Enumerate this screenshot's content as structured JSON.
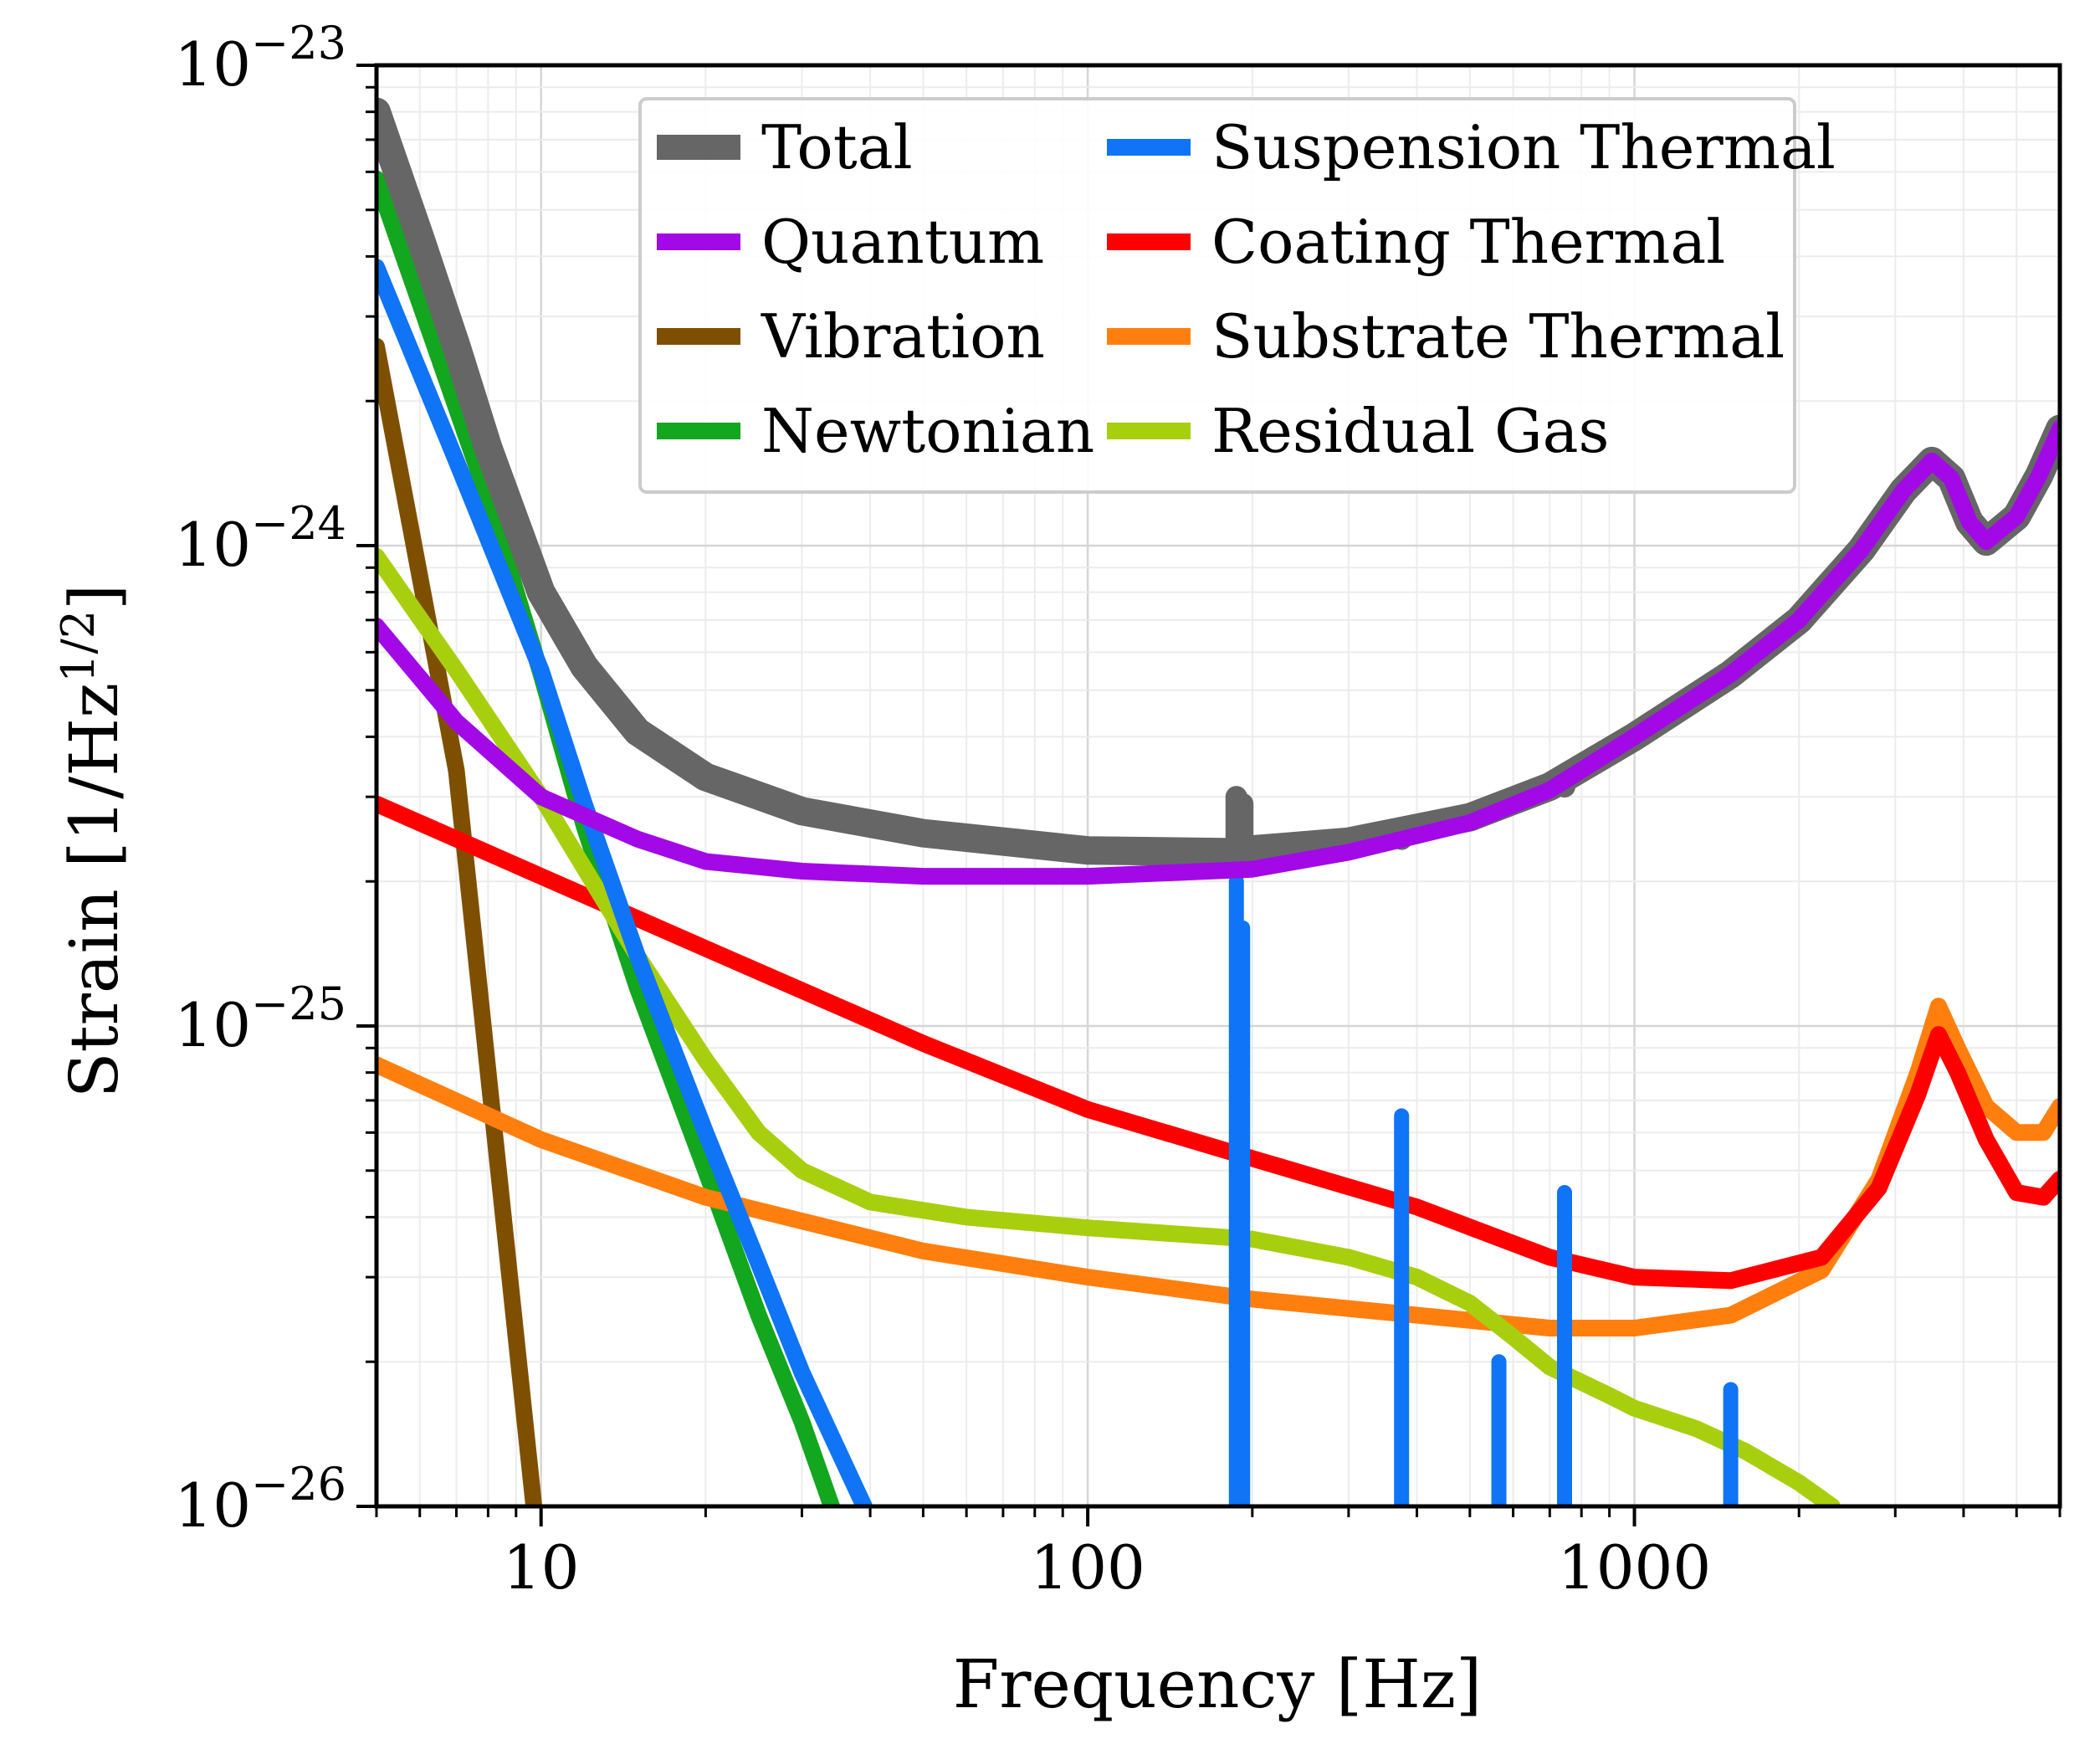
{
  "chart_data": {
    "type": "line",
    "title": "",
    "xlabel": "Frequency [Hz]",
    "ylabel": "Strain [1/Hz^{1/2}]",
    "ylabel_parts": {
      "main": "Strain [1/Hz",
      "sup": "1/2",
      "end": "]"
    },
    "xscale": "log",
    "yscale": "log",
    "xlim": [
      5,
      6000
    ],
    "ylim": [
      1e-26,
      1e-23
    ],
    "grid": true,
    "legend_position": "top-center",
    "x_ticks": [
      {
        "value": 10,
        "label": "10"
      },
      {
        "value": 100,
        "label": "100"
      },
      {
        "value": 1000,
        "label": "1000"
      }
    ],
    "y_ticks": [
      {
        "value": 1e-26,
        "base": "10",
        "exp": "−26"
      },
      {
        "value": 1e-25,
        "base": "10",
        "exp": "−25"
      },
      {
        "value": 1e-24,
        "base": "10",
        "exp": "−24"
      },
      {
        "value": 1e-23,
        "base": "10",
        "exp": "−23"
      }
    ],
    "series": [
      {
        "name": "Vibration",
        "key": "vibration",
        "color": "#7f4f00",
        "points": [
          [
            5,
            2.6e-24
          ],
          [
            7,
            3.4e-25
          ],
          [
            9.7,
            1e-26
          ]
        ]
      },
      {
        "name": "Newtonian",
        "key": "newtonian",
        "color": "#13a61f",
        "points": [
          [
            5,
            5.8e-24
          ],
          [
            8,
            1.25e-24
          ],
          [
            10,
            5.4e-25
          ],
          [
            12,
            2.6e-25
          ],
          [
            15,
            1.2e-25
          ],
          [
            20,
            5e-26
          ],
          [
            25,
            2.5e-26
          ],
          [
            30,
            1.5e-26
          ],
          [
            34,
            1e-26
          ]
        ]
      },
      {
        "name": "Suspension Thermal",
        "key": "suspension",
        "color": "#0f74f6",
        "points": [
          [
            5,
            3.8e-24
          ],
          [
            7,
            1.5e-24
          ],
          [
            10,
            5.5e-25
          ],
          [
            12,
            2.9e-25
          ],
          [
            15,
            1.4e-25
          ],
          [
            20,
            6e-26
          ],
          [
            25,
            3.2e-26
          ],
          [
            30,
            1.9e-26
          ],
          [
            39,
            1e-26
          ]
        ],
        "spikes": [
          {
            "f": 187,
            "peak": 2e-25
          },
          {
            "f": 192,
            "peak": 1.6e-25
          },
          {
            "f": 375,
            "peak": 6.5e-26
          },
          {
            "f": 565,
            "peak": 2e-26
          },
          {
            "f": 745,
            "peak": 4.5e-26
          },
          {
            "f": 1500,
            "peak": 1.75e-26
          }
        ]
      },
      {
        "name": "Substrate Thermal",
        "key": "substrate",
        "color": "#ff7f0e",
        "points": [
          [
            5,
            8.3e-26
          ],
          [
            10,
            5.8e-26
          ],
          [
            20,
            4.4e-26
          ],
          [
            50,
            3.4e-26
          ],
          [
            100,
            3e-26
          ],
          [
            200,
            2.7e-26
          ],
          [
            400,
            2.5e-26
          ],
          [
            700,
            2.35e-26
          ],
          [
            1000,
            2.35e-26
          ],
          [
            1500,
            2.5e-26
          ],
          [
            2200,
            3.1e-26
          ],
          [
            2800,
            4.8e-26
          ],
          [
            3300,
            8e-26
          ],
          [
            3600,
            1.1e-25
          ],
          [
            3900,
            9e-26
          ],
          [
            4400,
            6.8e-26
          ],
          [
            5000,
            6e-26
          ],
          [
            5600,
            6e-26
          ],
          [
            6000,
            6.8e-26
          ]
        ]
      },
      {
        "name": "Coating Thermal",
        "key": "coating",
        "color": "#ff0000",
        "points": [
          [
            5,
            2.9e-25
          ],
          [
            10,
            2.05e-25
          ],
          [
            20,
            1.45e-25
          ],
          [
            50,
            9.2e-26
          ],
          [
            100,
            6.7e-26
          ],
          [
            200,
            5.3e-26
          ],
          [
            400,
            4.2e-26
          ],
          [
            700,
            3.3e-26
          ],
          [
            1000,
            3e-26
          ],
          [
            1500,
            2.95e-26
          ],
          [
            2200,
            3.3e-26
          ],
          [
            2800,
            4.6e-26
          ],
          [
            3300,
            7.2e-26
          ],
          [
            3600,
            9.6e-26
          ],
          [
            3900,
            8e-26
          ],
          [
            4400,
            5.8e-26
          ],
          [
            5000,
            4.5e-26
          ],
          [
            5600,
            4.4e-26
          ],
          [
            6000,
            4.8e-26
          ]
        ]
      },
      {
        "name": "Residual Gas",
        "key": "gas",
        "color": "#a7cf0e",
        "points": [
          [
            5,
            9.5e-25
          ],
          [
            7,
            5.5e-25
          ],
          [
            10,
            3e-25
          ],
          [
            15,
            1.4e-25
          ],
          [
            20,
            8.5e-26
          ],
          [
            25,
            6e-26
          ],
          [
            30,
            5e-26
          ],
          [
            40,
            4.3e-26
          ],
          [
            60,
            4e-26
          ],
          [
            100,
            3.8e-26
          ],
          [
            200,
            3.6e-26
          ],
          [
            300,
            3.3e-26
          ],
          [
            400,
            3e-26
          ],
          [
            500,
            2.65e-26
          ],
          [
            600,
            2.25e-26
          ],
          [
            700,
            1.95e-26
          ],
          [
            900,
            1.7e-26
          ],
          [
            1000,
            1.6e-26
          ],
          [
            1300,
            1.45e-26
          ],
          [
            1600,
            1.3e-26
          ],
          [
            2000,
            1.12e-26
          ],
          [
            2300,
            1e-26
          ]
        ]
      },
      {
        "name": "Quantum",
        "key": "quantum",
        "color": "#a209e6",
        "points": [
          [
            5,
            6.8e-25
          ],
          [
            7,
            4.3e-25
          ],
          [
            10,
            3e-25
          ],
          [
            15,
            2.45e-25
          ],
          [
            20,
            2.2e-25
          ],
          [
            30,
            2.1e-25
          ],
          [
            50,
            2.05e-25
          ],
          [
            100,
            2.05e-25
          ],
          [
            200,
            2.12e-25
          ],
          [
            300,
            2.3e-25
          ],
          [
            500,
            2.65e-25
          ],
          [
            700,
            3.1e-25
          ],
          [
            1000,
            4e-25
          ],
          [
            1500,
            5.4e-25
          ],
          [
            2000,
            7e-25
          ],
          [
            2600,
            9.8e-25
          ],
          [
            3100,
            1.3e-24
          ],
          [
            3500,
            1.5e-24
          ],
          [
            3800,
            1.38e-24
          ],
          [
            4100,
            1.12e-24
          ],
          [
            4400,
            1.02e-24
          ],
          [
            5000,
            1.15e-24
          ],
          [
            5500,
            1.4e-24
          ],
          [
            6000,
            1.75e-24
          ]
        ]
      },
      {
        "name": "Total",
        "key": "total",
        "color": "#666666",
        "points": [
          [
            5,
            8e-24
          ],
          [
            6,
            4.4e-24
          ],
          [
            7,
            2.6e-24
          ],
          [
            8,
            1.6e-24
          ],
          [
            10,
            8e-25
          ],
          [
            12,
            5.6e-25
          ],
          [
            15,
            4.1e-25
          ],
          [
            20,
            3.3e-25
          ],
          [
            30,
            2.8e-25
          ],
          [
            50,
            2.52e-25
          ],
          [
            100,
            2.32e-25
          ],
          [
            185,
            2.3e-25
          ],
          [
            200,
            2.33e-25
          ],
          [
            300,
            2.42e-25
          ],
          [
            500,
            2.72e-25
          ],
          [
            700,
            3.15e-25
          ],
          [
            1000,
            4e-25
          ],
          [
            1500,
            5.4e-25
          ],
          [
            2000,
            7e-25
          ],
          [
            2600,
            9.8e-25
          ],
          [
            3100,
            1.3e-24
          ],
          [
            3500,
            1.5e-24
          ],
          [
            3800,
            1.38e-24
          ],
          [
            4100,
            1.12e-24
          ],
          [
            4400,
            1.02e-24
          ],
          [
            5000,
            1.15e-24
          ],
          [
            5500,
            1.4e-24
          ],
          [
            6000,
            1.75e-24
          ]
        ],
        "spikes": [
          {
            "f": 187,
            "base": 2.3e-25,
            "peak": 3e-25
          },
          {
            "f": 192,
            "base": 2.3e-25,
            "peak": 2.9e-25
          },
          {
            "f": 375,
            "base": 2.45e-25,
            "peak": 2.55e-25
          },
          {
            "f": 745,
            "base": 3.15e-25,
            "peak": 3.3e-25
          }
        ]
      }
    ],
    "legend": [
      {
        "key": "total",
        "label": "Total",
        "color": "#666666"
      },
      {
        "key": "quantum",
        "label": "Quantum",
        "color": "#a209e6"
      },
      {
        "key": "vibration",
        "label": "Vibration",
        "color": "#7f4f00"
      },
      {
        "key": "newtonian",
        "label": "Newtonian",
        "color": "#13a61f"
      },
      {
        "key": "suspension",
        "label": "Suspension Thermal",
        "color": "#0f74f6"
      },
      {
        "key": "coating",
        "label": "Coating Thermal",
        "color": "#ff0000"
      },
      {
        "key": "substrate",
        "label": "Substrate Thermal",
        "color": "#ff7f0e"
      },
      {
        "key": "gas",
        "label": "Residual Gas",
        "color": "#a7cf0e"
      }
    ]
  }
}
